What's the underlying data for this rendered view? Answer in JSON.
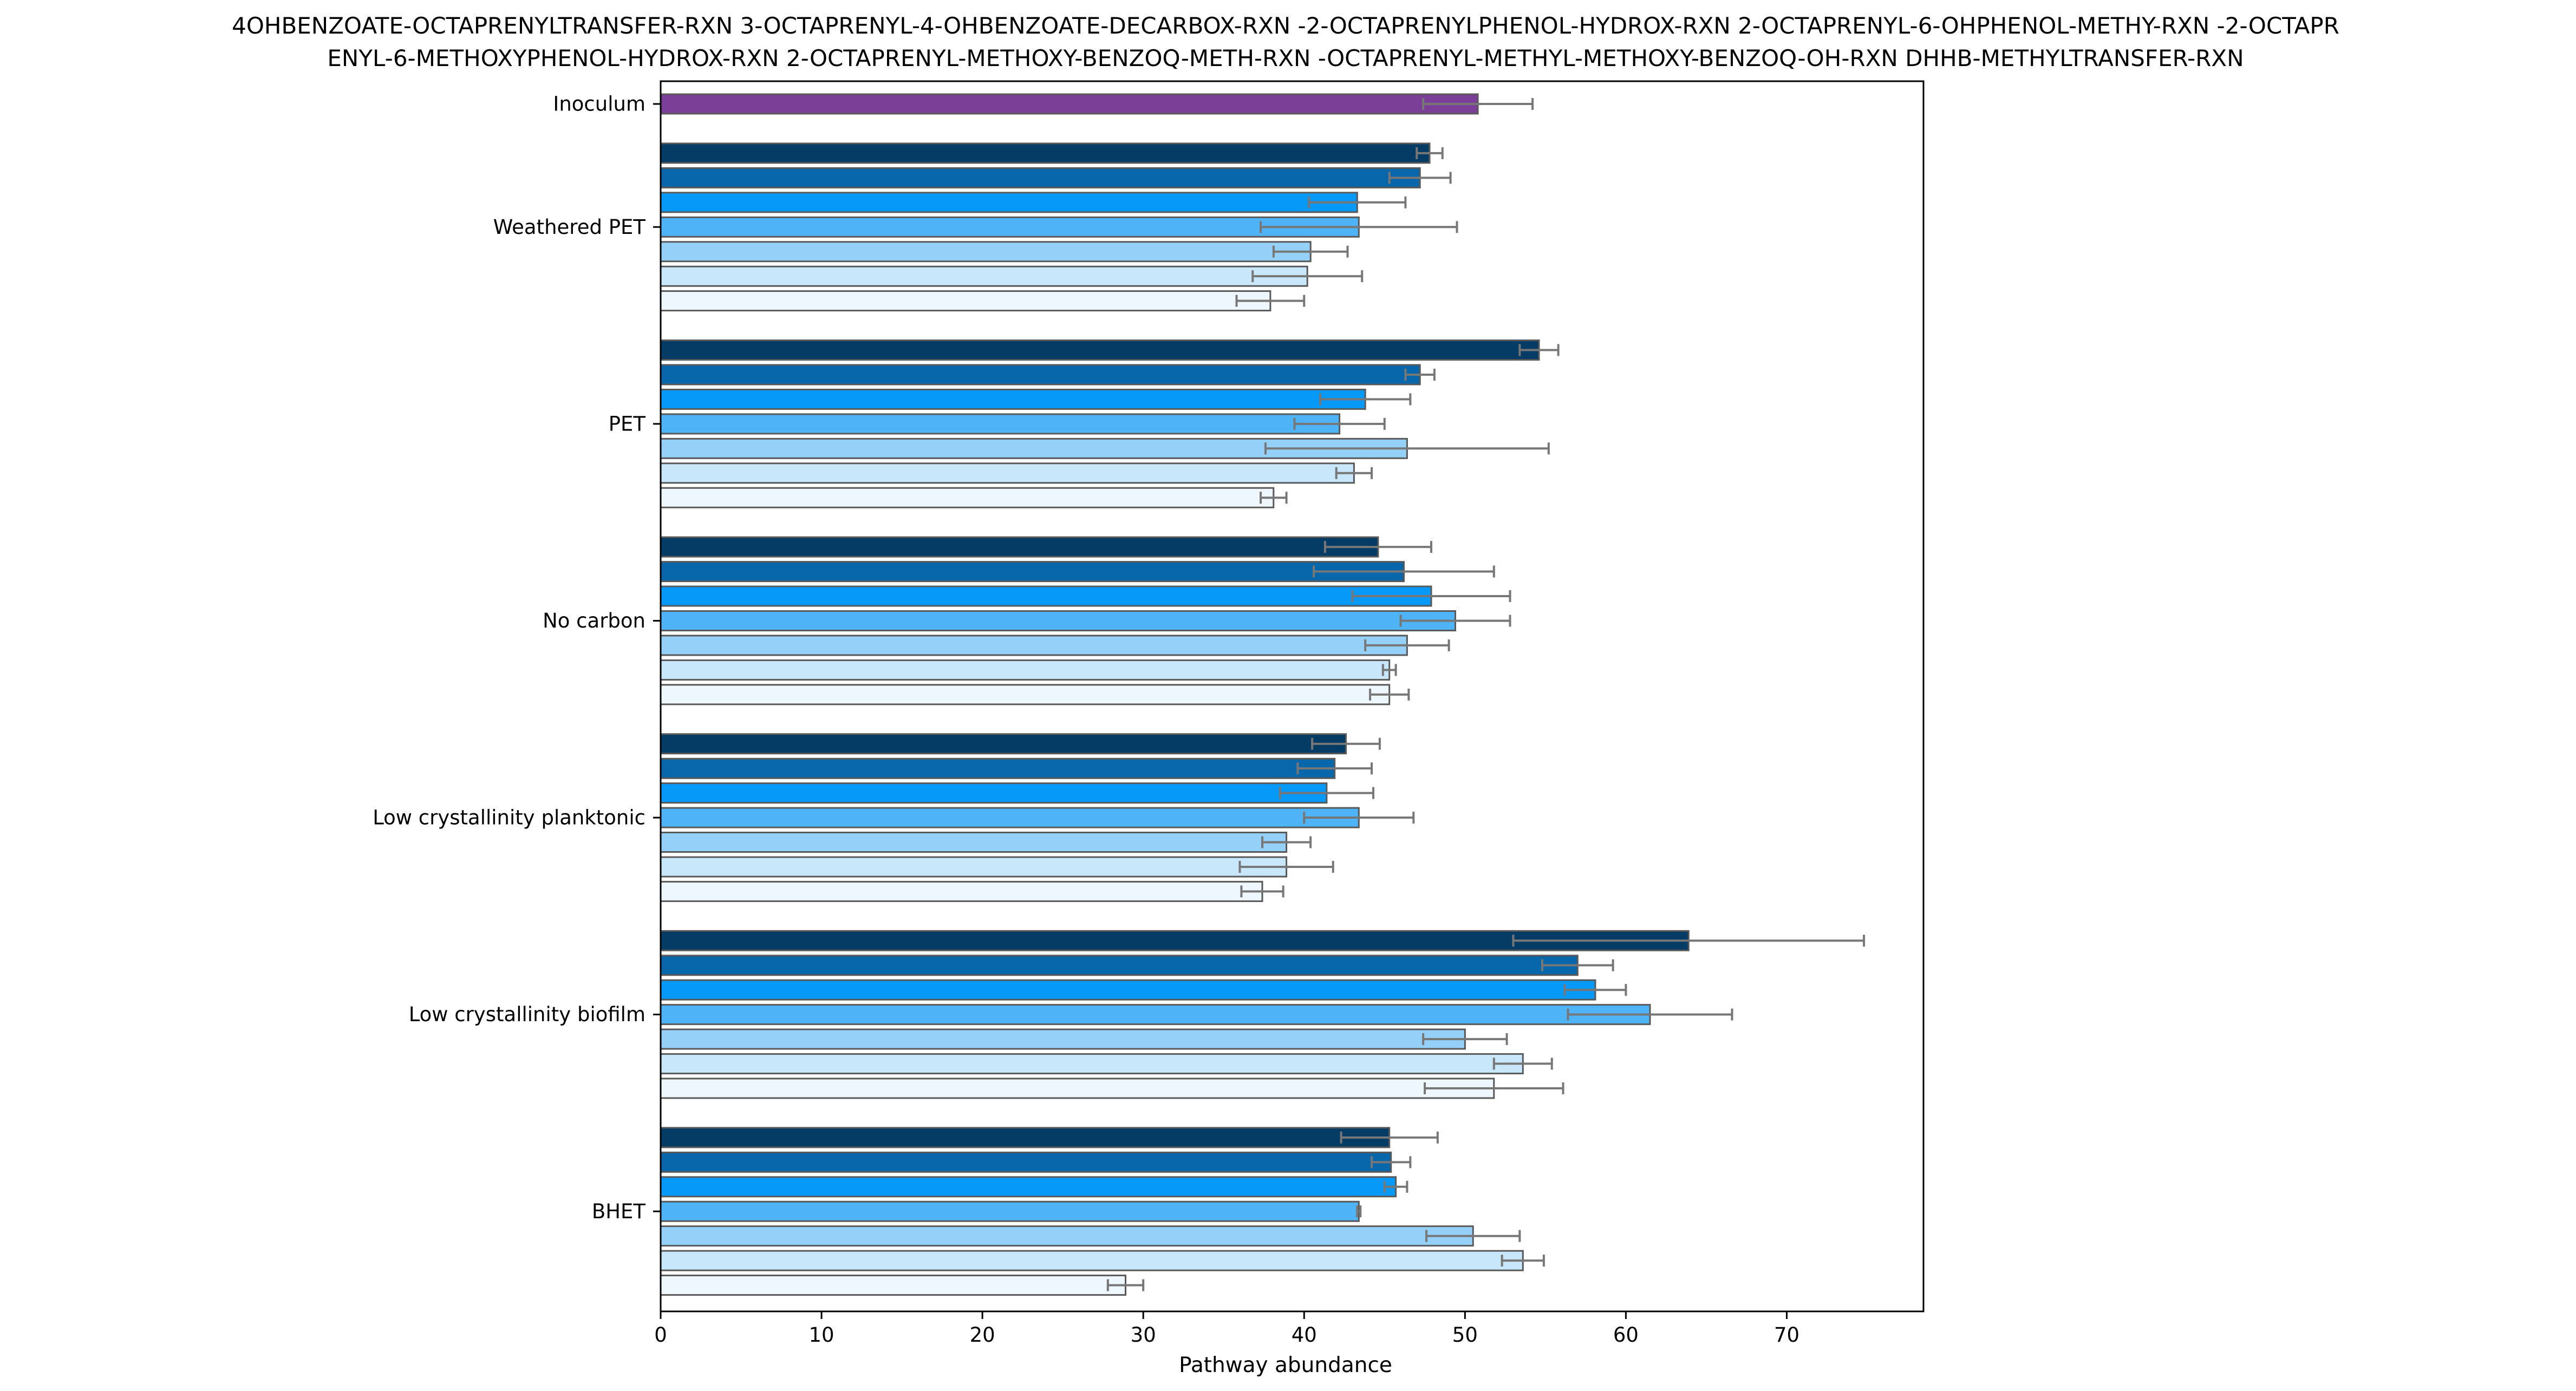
{
  "chart_data": {
    "type": "bar",
    "orientation": "horizontal",
    "title_lines": [
      "4OHBENZOATE-OCTAPRENYLTRANSFER-RXN 3-OCTAPRENYL-4-OHBENZOATE-DECARBOX-RXN -2-OCTAPRENYLPHENOL-HYDROX-RXN 2-OCTAPRENYL-6-OHPHENOL-METHY-RXN -2-OCTAPR",
      "ENYL-6-METHOXYPHENOL-HYDROX-RXN 2-OCTAPRENYL-METHOXY-BENZOQ-METH-RXN -OCTAPRENYL-METHYL-METHOXY-BENZOQ-OH-RXN DHHB-METHYLTRANSFER-RXN"
    ],
    "xlabel": "Pathway abundance",
    "ylabel": "",
    "xlim": [
      0,
      78.5
    ],
    "xticks": [
      "0",
      "10",
      "20",
      "30",
      "40",
      "50",
      "60",
      "70"
    ],
    "grid": false,
    "legend": "none",
    "colors": {
      "inoculum": "#7b3f98",
      "series": [
        "#043c66",
        "#0866aa",
        "#0799f7",
        "#4fb3f7",
        "#94d0f7",
        "#c9e7fb",
        "#eef7fd"
      ],
      "bar_edge": "#595959",
      "error_bar": "#777777",
      "frame": "#000000"
    },
    "groups": [
      {
        "label": "Inoculum",
        "bars": [
          {
            "value": 50.8,
            "err": 3.4
          }
        ]
      },
      {
        "label": "Weathered PET",
        "bars": [
          {
            "value": 47.8,
            "err": 0.8
          },
          {
            "value": 47.2,
            "err": 1.9
          },
          {
            "value": 43.3,
            "err": 3.0
          },
          {
            "value": 43.4,
            "err": 6.1
          },
          {
            "value": 40.4,
            "err": 2.3
          },
          {
            "value": 40.2,
            "err": 3.4
          },
          {
            "value": 37.9,
            "err": 2.1
          }
        ]
      },
      {
        "label": "PET",
        "bars": [
          {
            "value": 54.6,
            "err": 1.2
          },
          {
            "value": 47.2,
            "err": 0.9
          },
          {
            "value": 43.8,
            "err": 2.8
          },
          {
            "value": 42.2,
            "err": 2.8
          },
          {
            "value": 46.4,
            "err": 8.8
          },
          {
            "value": 43.1,
            "err": 1.1
          },
          {
            "value": 38.1,
            "err": 0.8
          }
        ]
      },
      {
        "label": "No carbon",
        "bars": [
          {
            "value": 44.6,
            "err": 3.3
          },
          {
            "value": 46.2,
            "err": 5.6
          },
          {
            "value": 47.9,
            "err": 4.9
          },
          {
            "value": 49.4,
            "err": 3.4
          },
          {
            "value": 46.4,
            "err": 2.6
          },
          {
            "value": 45.3,
            "err": 0.4
          },
          {
            "value": 45.3,
            "err": 1.2
          }
        ]
      },
      {
        "label": "Low crystallinity planktonic",
        "bars": [
          {
            "value": 42.6,
            "err": 2.1
          },
          {
            "value": 41.9,
            "err": 2.3
          },
          {
            "value": 41.4,
            "err": 2.9
          },
          {
            "value": 43.4,
            "err": 3.4
          },
          {
            "value": 38.9,
            "err": 1.5
          },
          {
            "value": 38.9,
            "err": 2.9
          },
          {
            "value": 37.4,
            "err": 1.3
          }
        ]
      },
      {
        "label": "Low crystallinity biofilm",
        "bars": [
          {
            "value": 63.9,
            "err": 10.9
          },
          {
            "value": 57.0,
            "err": 2.2
          },
          {
            "value": 58.1,
            "err": 1.9
          },
          {
            "value": 61.5,
            "err": 5.1
          },
          {
            "value": 50.0,
            "err": 2.6
          },
          {
            "value": 53.6,
            "err": 1.8
          },
          {
            "value": 51.8,
            "err": 4.3
          }
        ]
      },
      {
        "label": "BHET",
        "bars": [
          {
            "value": 45.3,
            "err": 3.0
          },
          {
            "value": 45.4,
            "err": 1.2
          },
          {
            "value": 45.7,
            "err": 0.7
          },
          {
            "value": 43.4,
            "err": 0.1
          },
          {
            "value": 50.5,
            "err": 2.9
          },
          {
            "value": 53.6,
            "err": 1.3
          },
          {
            "value": 28.9,
            "err": 1.1
          }
        ]
      }
    ]
  }
}
